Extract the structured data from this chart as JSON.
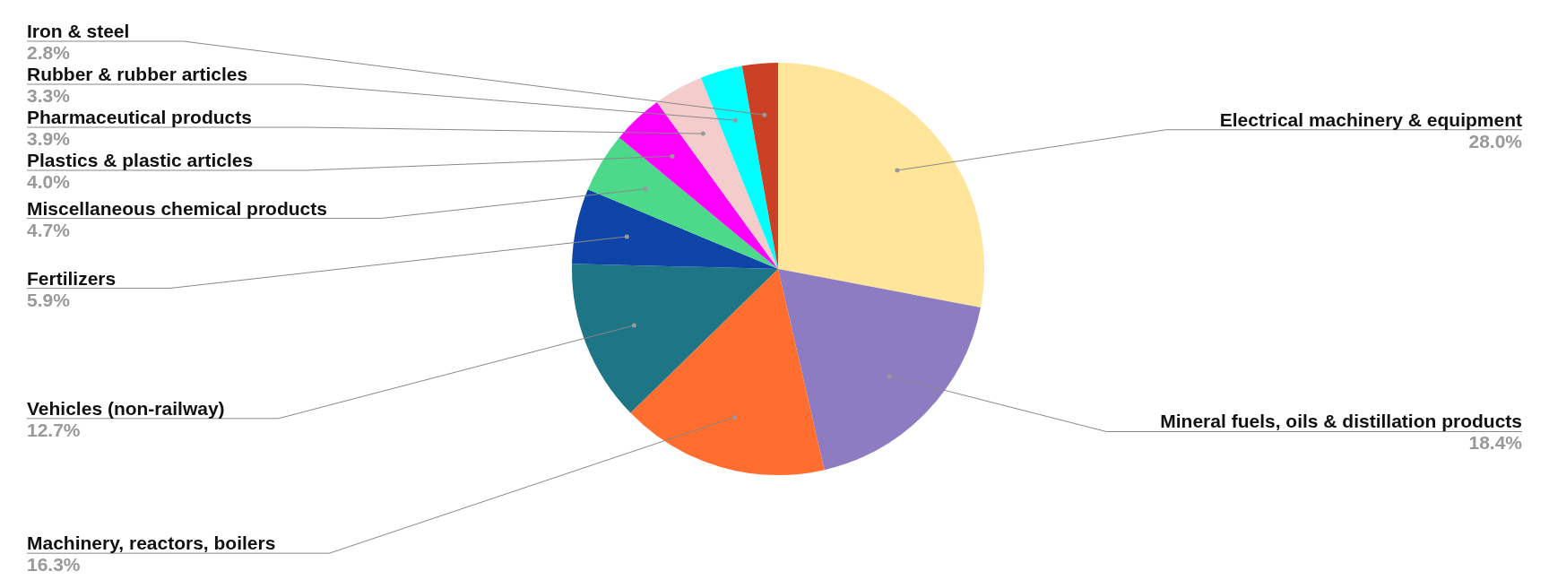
{
  "chart_data": {
    "type": "pie",
    "legend": false,
    "categories": [
      "Electrical machinery & equipment",
      "Mineral fuels, oils & distillation products",
      "Machinery, reactors, boilers",
      "Vehicles (non-railway)",
      "Fertilizers",
      "Miscellaneous chemical products",
      "Plastics & plastic articles",
      "Pharmaceutical products",
      "Rubber & rubber articles",
      "Iron & steel"
    ],
    "values": [
      28.0,
      18.4,
      16.3,
      12.7,
      5.9,
      4.7,
      4.0,
      3.9,
      3.3,
      2.8
    ],
    "value_labels": [
      "28.0%",
      "18.4%",
      "16.3%",
      "12.7%",
      "5.9%",
      "4.7%",
      "4.0%",
      "3.9%",
      "3.3%",
      "2.8%"
    ],
    "colors": [
      "#ffe599",
      "#8e7cc3",
      "#ff6d2f",
      "#1e7585",
      "#0e43a8",
      "#4cd98a",
      "#ff00ff",
      "#f4cccc",
      "#00ffff",
      "#cc4125"
    ]
  }
}
